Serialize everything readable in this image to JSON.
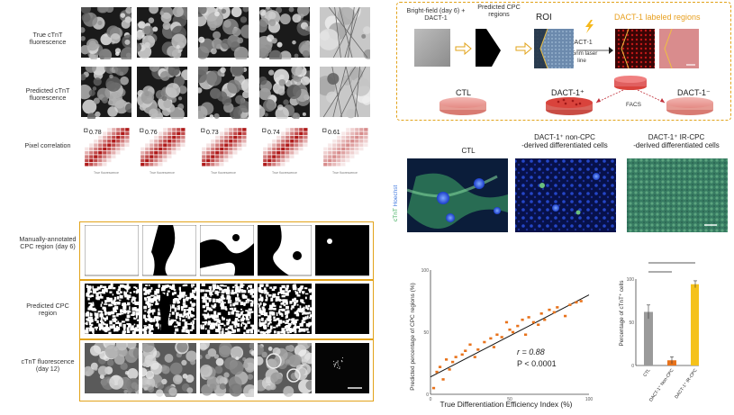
{
  "panel_a": {
    "row_labels": [
      "True cTnT fluorescence",
      "Predicted cTnT fluorescence",
      "Pixel correlation"
    ],
    "correlation_values": [
      "0.78",
      "0.76",
      "0.73",
      "0.74",
      "0.61"
    ],
    "axis_label_small": "True fluorescence"
  },
  "panel_b": {
    "row_labels": [
      "Manually-annotated CPC region (day 6)",
      "Predicted CPC region",
      "cTnT fluorescence (day 12)"
    ]
  },
  "panel_c": {
    "step1": "Bright-field (day 6) + DACT-1",
    "step2": "Predicted CPC regions",
    "step3": "ROI",
    "step4_label": "DACT-1",
    "laser": "405nm laser line",
    "step5": "DACT-1 labeled regions",
    "dish_ctl": "CTL",
    "dish_plus": "DACT-1⁺",
    "dish_minus": "DACT-1⁻",
    "facs": "FACS"
  },
  "panel_d": {
    "col1": "CTL",
    "col2_line1": "DACT-1⁺ non-CPC",
    "col2_line2": "-derived differentiated cells",
    "col3_line1": "DACT-1⁺ IR-CPC",
    "col3_line2": "-derived differentiated cells",
    "side_label_a": "cTnT",
    "side_label_b": "Hoechst"
  },
  "panel_e": {
    "chart_data": {
      "type": "scatter",
      "xlabel": "True Differentiation Efficiency Index   (%)",
      "ylabel": "Predicted percentage of CPC regions (%)",
      "xlim": [
        0,
        100
      ],
      "ylim": [
        0,
        100
      ],
      "xticks": [
        "0",
        "50",
        "100"
      ],
      "yticks": [
        "0",
        "50",
        "100"
      ],
      "annotation_r": "r = 0.88",
      "annotation_p": "P < 0.0001",
      "x": [
        2,
        4,
        6,
        8,
        10,
        12,
        14,
        16,
        20,
        22,
        25,
        28,
        30,
        34,
        38,
        40,
        42,
        45,
        48,
        50,
        52,
        55,
        58,
        60,
        62,
        65,
        68,
        70,
        72,
        75,
        78,
        80,
        85,
        88,
        92,
        95
      ],
      "y": [
        5,
        18,
        22,
        12,
        28,
        20,
        26,
        30,
        32,
        35,
        40,
        30,
        36,
        42,
        45,
        38,
        48,
        46,
        58,
        52,
        50,
        55,
        60,
        48,
        62,
        58,
        56,
        65,
        60,
        68,
        66,
        70,
        63,
        72,
        74,
        75
      ],
      "fit_line": [
        [
          0,
          14
        ],
        [
          100,
          80
        ]
      ]
    }
  },
  "panel_f": {
    "chart_data": {
      "type": "bar",
      "categories": [
        "CTL",
        "DACT-1⁺ Non-CPC",
        "DACT-1⁺ IR-CPC"
      ],
      "values": [
        62,
        6,
        94
      ],
      "errors": [
        8,
        4,
        4
      ],
      "colors": [
        "#9a9a9a",
        "#e8731c",
        "#f5c21b"
      ],
      "ylabel": "Percentage of cTnT⁺ cells",
      "ylim": [
        0,
        100
      ],
      "yticks": [
        "0",
        "50",
        "100"
      ]
    }
  }
}
